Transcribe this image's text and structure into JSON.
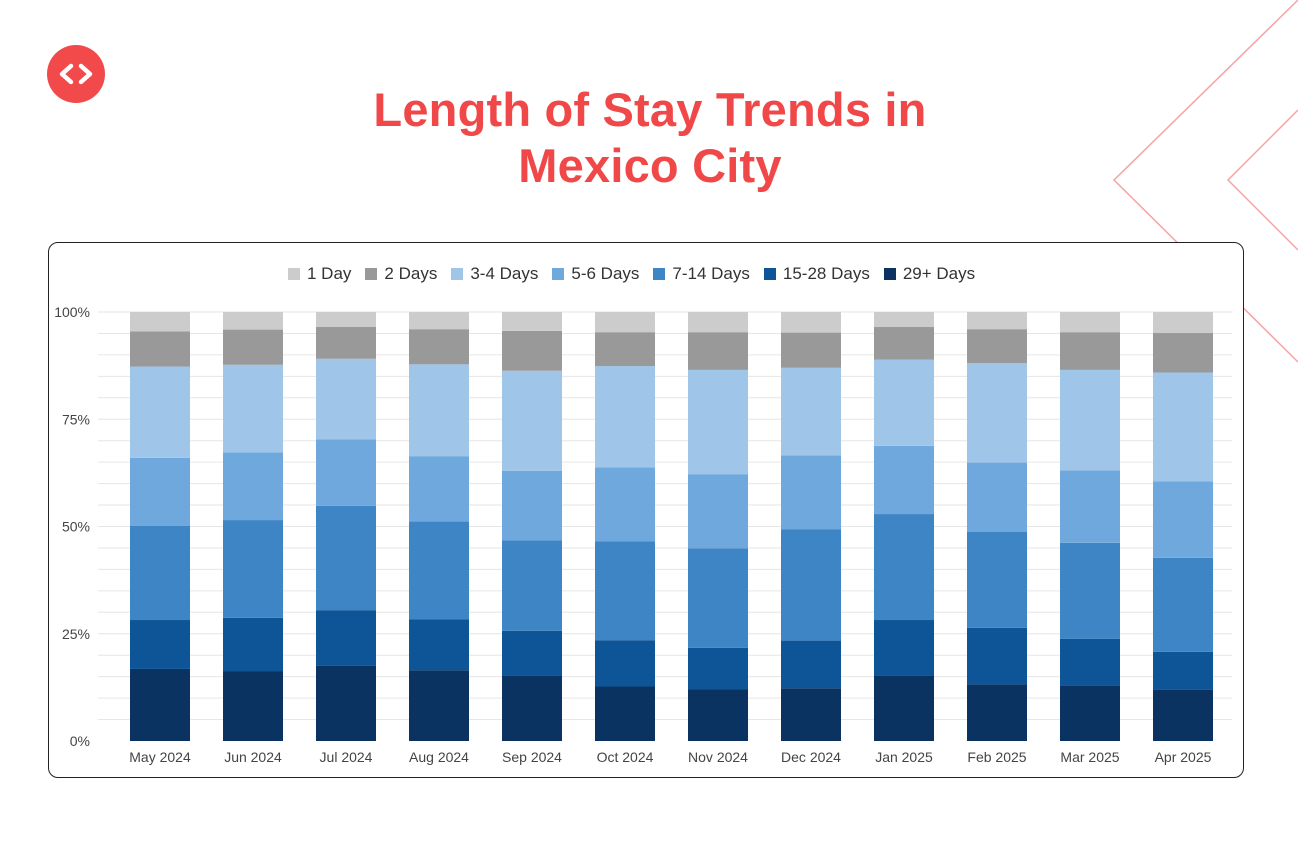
{
  "title": {
    "line1": "Length of Stay Trends in",
    "line2": "Mexico City"
  },
  "colors": {
    "accent": "#f04848"
  },
  "logo": {
    "icon": "diamond-arrows-icon"
  },
  "chart_data": {
    "type": "bar",
    "stacked": true,
    "percent": true,
    "categories": [
      "May 2024",
      "Jun 2024",
      "Jul 2024",
      "Aug 2024",
      "Sep 2024",
      "Oct 2024",
      "Nov 2024",
      "Dec 2024",
      "Jan 2025",
      "Feb 2025",
      "Mar 2025",
      "Apr 2025"
    ],
    "y_ticks": [
      "0%",
      "25%",
      "50%",
      "75%",
      "100%"
    ],
    "ylim": [
      0,
      100
    ],
    "grid": true,
    "legend_position": "top",
    "series": [
      {
        "name": "29+ Days",
        "color": "#0a3361",
        "values": [
          16.8,
          16.2,
          17.5,
          16.5,
          15.3,
          12.7,
          12.1,
          12.3,
          15.3,
          13.2,
          13.0,
          11.9
        ]
      },
      {
        "name": "15-28 Days",
        "color": "#0d5596",
        "values": [
          11.4,
          12.5,
          13.0,
          11.9,
          10.4,
          10.8,
          9.6,
          11.1,
          12.9,
          13.2,
          10.8,
          8.9
        ]
      },
      {
        "name": "7-14 Days",
        "color": "#3e85c6",
        "values": [
          22.0,
          22.8,
          24.3,
          22.8,
          21.1,
          23.0,
          23.2,
          25.9,
          24.7,
          22.4,
          22.4,
          21.9
        ]
      },
      {
        "name": "5-6 Days",
        "color": "#6fa8dc",
        "values": [
          15.8,
          15.8,
          15.5,
          15.2,
          16.2,
          17.3,
          17.3,
          17.3,
          15.9,
          16.1,
          16.9,
          17.8
        ]
      },
      {
        "name": "3-4 Days",
        "color": "#9fc5e8",
        "values": [
          21.3,
          20.4,
          18.8,
          21.4,
          23.3,
          23.6,
          24.3,
          20.4,
          20.1,
          23.2,
          23.4,
          25.4
        ]
      },
      {
        "name": "2 Days",
        "color": "#999999",
        "values": [
          8.2,
          8.2,
          7.4,
          8.2,
          9.3,
          7.9,
          8.8,
          8.2,
          7.6,
          7.9,
          8.8,
          9.2
        ]
      },
      {
        "name": "1 Day",
        "color": "#cccccc",
        "values": [
          4.5,
          4.1,
          3.5,
          4.0,
          4.4,
          4.7,
          4.7,
          4.8,
          3.5,
          4.0,
          4.7,
          4.9
        ]
      }
    ]
  }
}
